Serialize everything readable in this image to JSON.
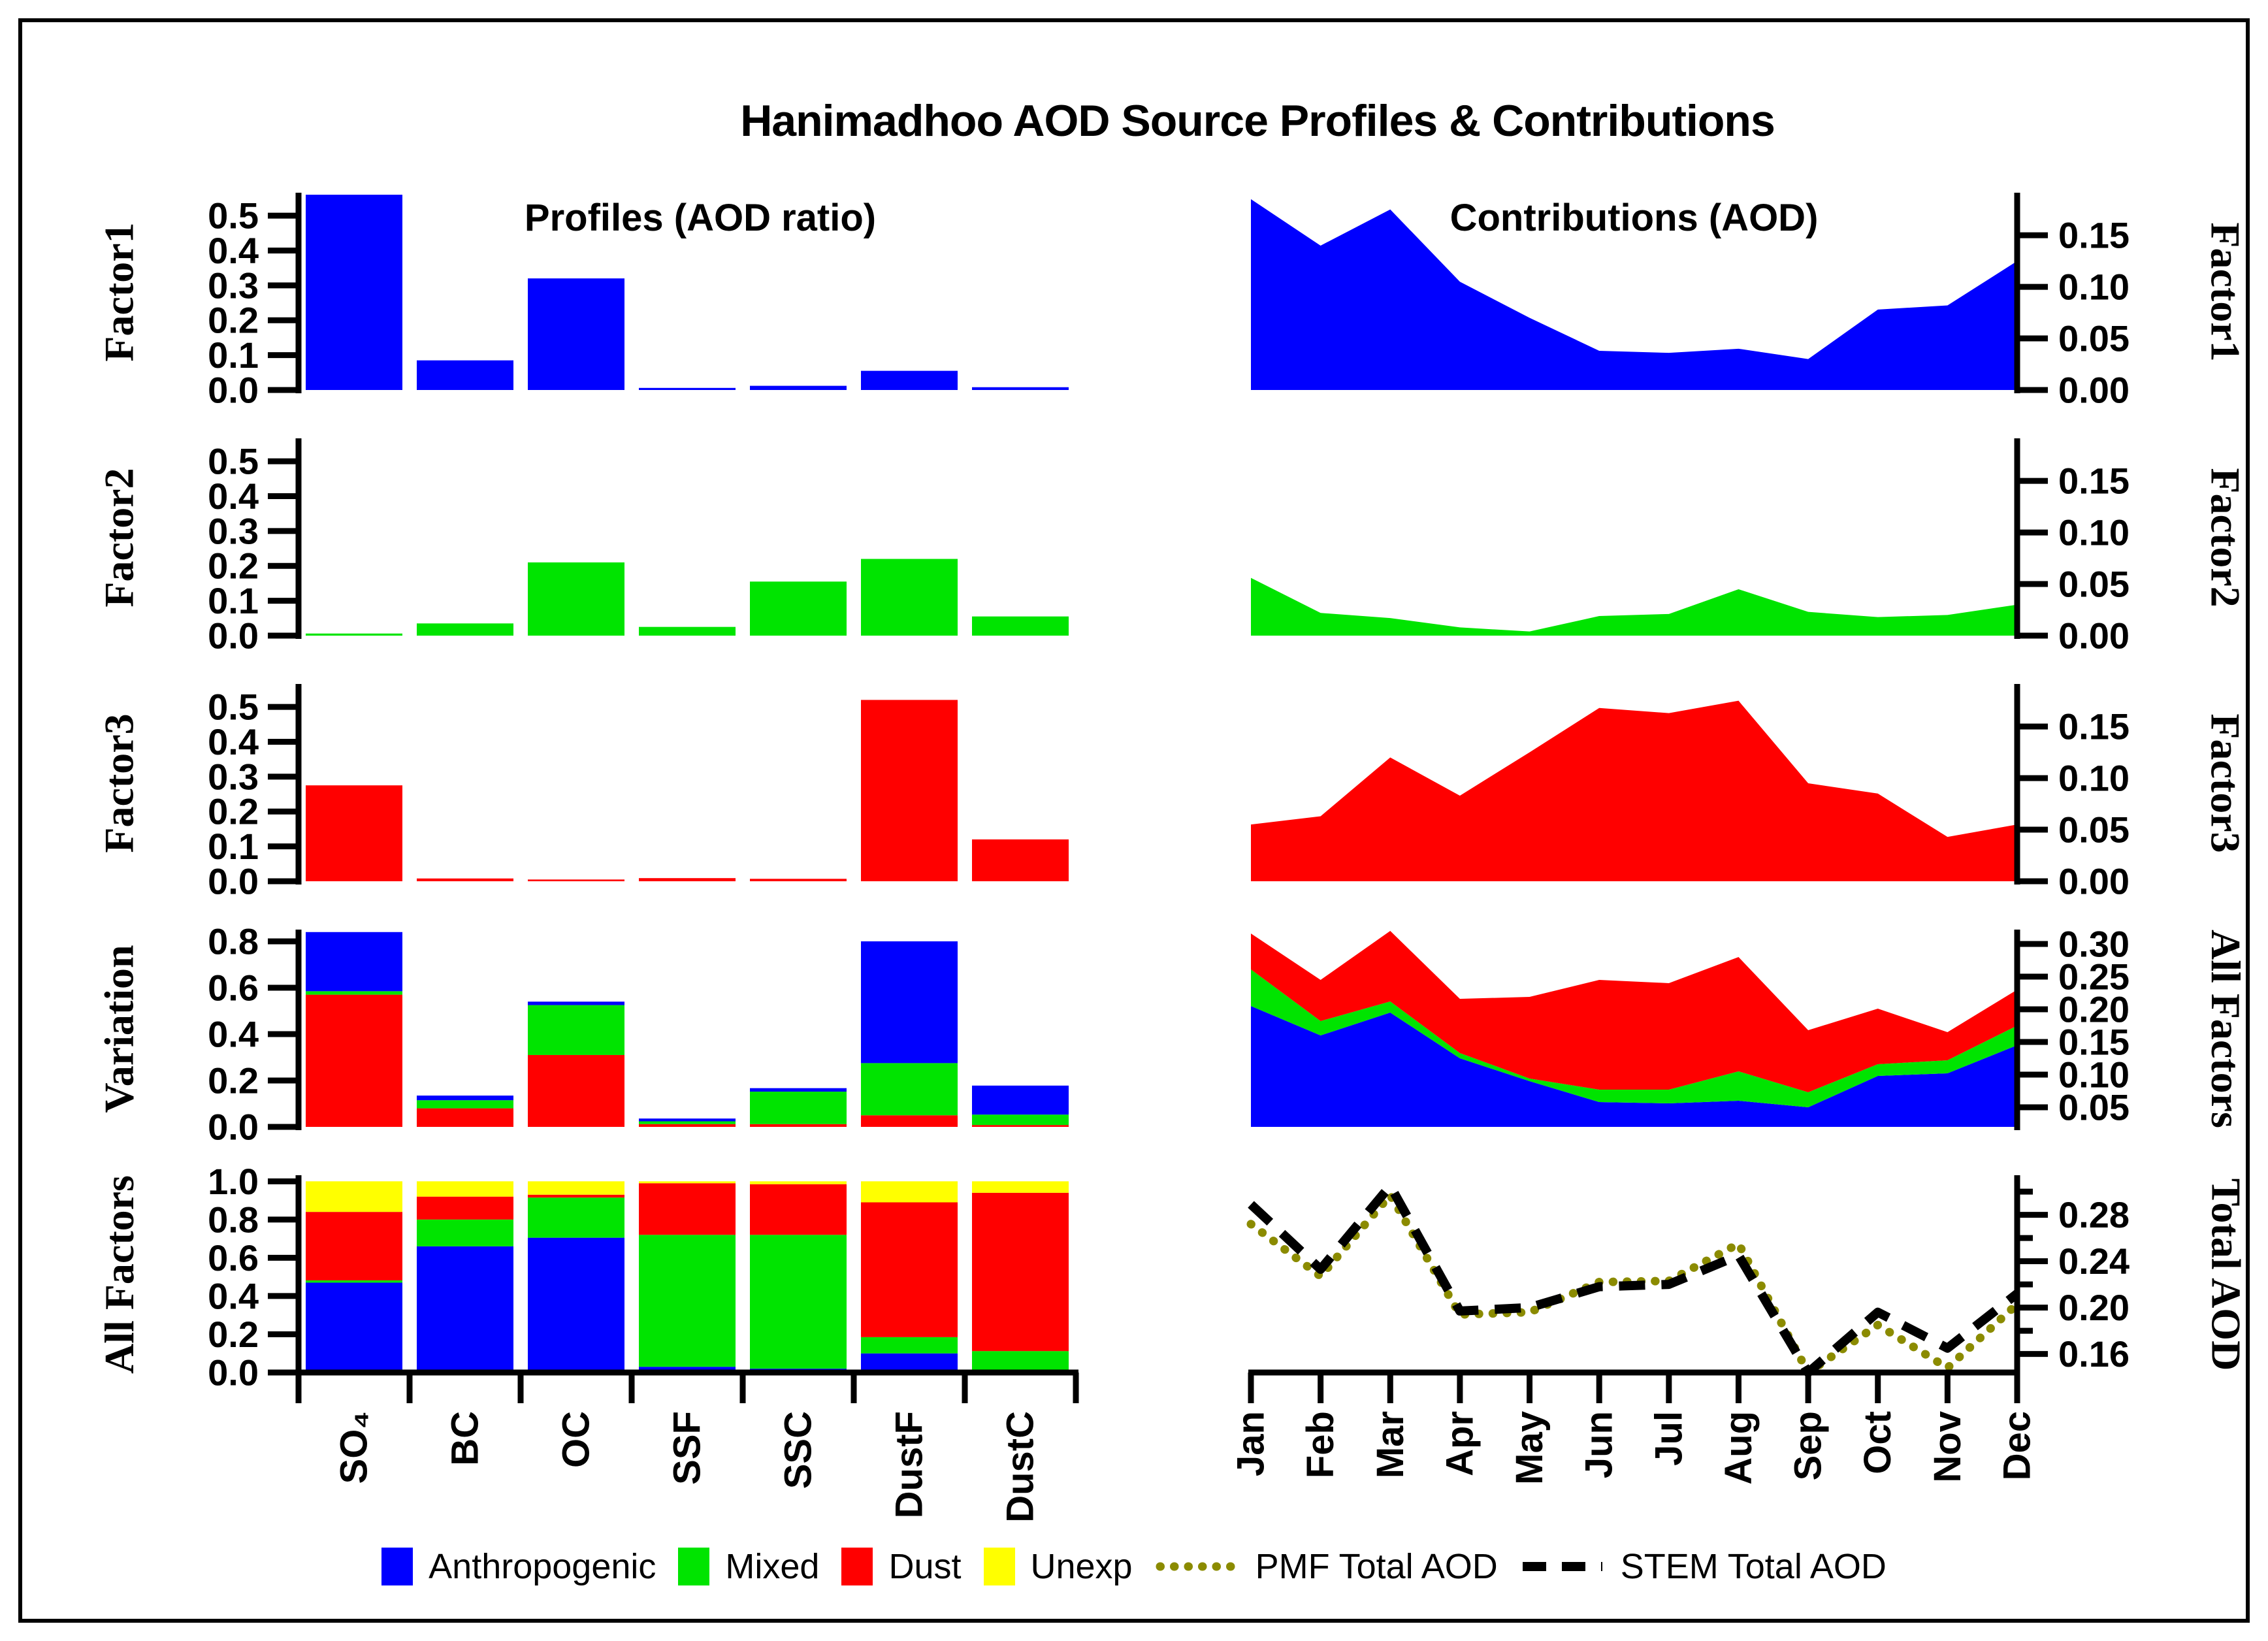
{
  "title": "Hanimadhoo AOD Source Profiles & Contributions",
  "colors": {
    "anthropogenic": "#0000FF",
    "mixed": "#00E400",
    "dust": "#FF0000",
    "unexplained": "#FFFF00",
    "pmf": "#8B8B00",
    "stem": "#000000",
    "axis": "#000000",
    "background": "#FFFFFF"
  },
  "legend": {
    "items": [
      {
        "label": "Anthropogenic",
        "color_key": "anthropogenic",
        "type": "swatch"
      },
      {
        "label": "Mixed",
        "color_key": "mixed",
        "type": "swatch"
      },
      {
        "label": "Dust",
        "color_key": "dust",
        "type": "swatch"
      },
      {
        "label": "Unexp",
        "color_key": "unexplained",
        "type": "swatch"
      },
      {
        "label": "PMF Total AOD",
        "color_key": "pmf",
        "type": "line",
        "style": "dotted"
      },
      {
        "label": "STEM Total AOD",
        "color_key": "stem",
        "type": "line",
        "style": "dashed"
      }
    ]
  },
  "chart_data": {
    "left_column": {
      "title": "Profiles (AOD ratio)",
      "categories": [
        "SO₄",
        "BC",
        "OC",
        "SSF",
        "SSC",
        "DustF",
        "DustC"
      ],
      "panels": [
        {
          "ylabel": "Factor1",
          "type": "bar",
          "color_key": "anthropogenic",
          "ylim": [
            0,
            0.562
          ],
          "yticks": [
            [
              0,
              "0.0"
            ],
            [
              0.1,
              "0.1"
            ],
            [
              0.2,
              "0.2"
            ],
            [
              0.3,
              "0.3"
            ],
            [
              0.4,
              "0.4"
            ],
            [
              0.5,
              "0.5"
            ]
          ],
          "values": [
            0.56,
            0.085,
            0.32,
            0.006,
            0.012,
            0.055,
            0.008
          ]
        },
        {
          "ylabel": "Factor2",
          "type": "bar",
          "color_key": "mixed",
          "ylim": [
            0,
            0.562
          ],
          "yticks": [
            [
              0,
              "0.0"
            ],
            [
              0.1,
              "0.1"
            ],
            [
              0.2,
              "0.2"
            ],
            [
              0.3,
              "0.3"
            ],
            [
              0.4,
              "0.4"
            ],
            [
              0.5,
              "0.5"
            ]
          ],
          "values": [
            0.006,
            0.035,
            0.21,
            0.025,
            0.155,
            0.22,
            0.055
          ]
        },
        {
          "ylabel": "Factor3",
          "type": "bar",
          "color_key": "dust",
          "ylim": [
            0,
            0.562
          ],
          "yticks": [
            [
              0,
              "0.0"
            ],
            [
              0.1,
              "0.1"
            ],
            [
              0.2,
              "0.2"
            ],
            [
              0.3,
              "0.3"
            ],
            [
              0.4,
              "0.4"
            ],
            [
              0.5,
              "0.5"
            ]
          ],
          "values": [
            0.275,
            0.008,
            0.005,
            0.009,
            0.007,
            0.52,
            0.12
          ]
        },
        {
          "ylabel": "Variation",
          "type": "stacked_bar",
          "order": [
            "dust",
            "mixed",
            "anthropogenic"
          ],
          "ylim": [
            0,
            0.845
          ],
          "yticks": [
            [
              0,
              "0.0"
            ],
            [
              0.2,
              "0.2"
            ],
            [
              0.4,
              "0.4"
            ],
            [
              0.6,
              "0.6"
            ],
            [
              0.8,
              "0.8"
            ]
          ],
          "series": {
            "dust": [
              0.57,
              0.08,
              0.31,
              0.012,
              0.012,
              0.05,
              0.008
            ],
            "mixed": [
              0.015,
              0.035,
              0.215,
              0.012,
              0.14,
              0.225,
              0.045
            ],
            "anthropogenic": [
              0.255,
              0.02,
              0.015,
              0.012,
              0.015,
              0.525,
              0.125
            ]
          }
        },
        {
          "ylabel": "All Factors",
          "type": "stacked_bar",
          "order": [
            "anthropogenic",
            "mixed",
            "dust",
            "unexplained"
          ],
          "ylim": [
            0,
            1.025
          ],
          "yticks": [
            [
              0,
              "0.0"
            ],
            [
              0.2,
              "0.2"
            ],
            [
              0.4,
              "0.4"
            ],
            [
              0.6,
              "0.6"
            ],
            [
              0.8,
              "0.8"
            ],
            [
              1.0,
              "1.0"
            ]
          ],
          "series": {
            "anthropogenic": [
              0.47,
              0.66,
              0.705,
              0.03,
              0.02,
              0.1,
              0.012
            ],
            "mixed": [
              0.012,
              0.14,
              0.21,
              0.69,
              0.7,
              0.085,
              0.1
            ],
            "dust": [
              0.358,
              0.12,
              0.015,
              0.27,
              0.265,
              0.705,
              0.828
            ],
            "unexplained": [
              0.16,
              0.08,
              0.07,
              0.01,
              0.015,
              0.11,
              0.06
            ]
          }
        }
      ]
    },
    "right_column": {
      "title": "Contributions (AOD)",
      "x": [
        "Jan",
        "Feb",
        "Mar",
        "Apr",
        "May",
        "Jun",
        "Jul",
        "Aug",
        "Sep",
        "Oct",
        "Nov",
        "Dec"
      ],
      "panels": [
        {
          "ylabel": "Factor1",
          "type": "area",
          "color_key": "anthropogenic",
          "ylim": [
            0,
            0.19
          ],
          "yticks": [
            [
              0,
              "0.00"
            ],
            [
              0.05,
              "0.05"
            ],
            [
              0.1,
              "0.10"
            ],
            [
              0.15,
              "0.15"
            ]
          ],
          "values": [
            0.185,
            0.14,
            0.175,
            0.105,
            0.07,
            0.038,
            0.036,
            0.04,
            0.03,
            0.078,
            0.082,
            0.125
          ]
        },
        {
          "ylabel": "Factor2",
          "type": "area",
          "color_key": "mixed",
          "ylim": [
            0,
            0.19
          ],
          "yticks": [
            [
              0,
              "0.00"
            ],
            [
              0.05,
              "0.05"
            ],
            [
              0.1,
              "0.10"
            ],
            [
              0.15,
              "0.15"
            ]
          ],
          "values": [
            0.056,
            0.022,
            0.017,
            0.008,
            0.004,
            0.019,
            0.021,
            0.045,
            0.023,
            0.018,
            0.02,
            0.03
          ]
        },
        {
          "ylabel": "Factor3",
          "type": "area",
          "color_key": "dust",
          "ylim": [
            0,
            0.19
          ],
          "yticks": [
            [
              0,
              "0.00"
            ],
            [
              0.05,
              "0.05"
            ],
            [
              0.1,
              "0.10"
            ],
            [
              0.15,
              "0.15"
            ]
          ],
          "values": [
            0.055,
            0.063,
            0.12,
            0.083,
            0.125,
            0.168,
            0.163,
            0.175,
            0.095,
            0.085,
            0.043,
            0.055
          ]
        },
        {
          "ylabel": "All Factors",
          "type": "stacked_area",
          "order": [
            "anthropogenic",
            "mixed",
            "dust"
          ],
          "ylim": [
            0.02,
            0.32
          ],
          "yticks": [
            [
              0.05,
              "0.05"
            ],
            [
              0.1,
              "0.10"
            ],
            [
              0.15,
              "0.15"
            ],
            [
              0.2,
              "0.20"
            ],
            [
              0.25,
              "0.25"
            ],
            [
              0.3,
              "0.30"
            ]
          ],
          "series": {
            "anthropogenic": [
              0.185,
              0.14,
              0.175,
              0.105,
              0.07,
              0.038,
              0.036,
              0.04,
              0.03,
              0.078,
              0.082,
              0.125
            ],
            "mixed": [
              0.056,
              0.022,
              0.017,
              0.008,
              0.004,
              0.019,
              0.021,
              0.045,
              0.023,
              0.018,
              0.02,
              0.03
            ],
            "dust": [
              0.055,
              0.063,
              0.12,
              0.083,
              0.125,
              0.168,
              0.163,
              0.175,
              0.095,
              0.085,
              0.043,
              0.055
            ]
          }
        },
        {
          "ylabel": "Total AOD",
          "type": "lines",
          "ylim": [
            0.144,
            0.313
          ],
          "yticks": [
            [
              0.16,
              "0.16"
            ],
            [
              0.2,
              "0.20"
            ],
            [
              0.24,
              "0.24"
            ],
            [
              0.28,
              "0.28"
            ]
          ],
          "yticks_minor": [
            0.18,
            0.22,
            0.26,
            0.3
          ],
          "series": [
            {
              "name": "PMF Total AOD",
              "color_key": "pmf",
              "style": "dotted",
              "values": [
                0.272,
                0.227,
                0.297,
                0.194,
                0.196,
                0.222,
                0.223,
                0.255,
                0.143,
                0.185,
                0.148,
                0.203
              ]
            },
            {
              "name": "STEM Total AOD",
              "color_key": "stem",
              "style": "dashed",
              "values": [
                0.289,
                0.233,
                0.305,
                0.197,
                0.2,
                0.218,
                0.22,
                0.245,
                0.144,
                0.196,
                0.165,
                0.212
              ]
            }
          ]
        }
      ]
    }
  }
}
